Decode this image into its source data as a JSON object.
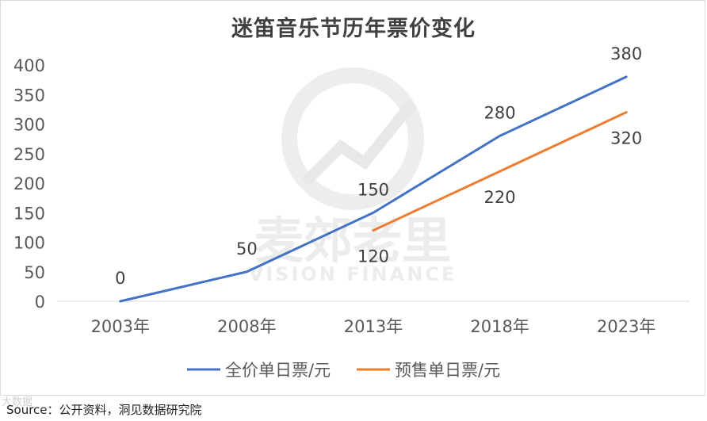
{
  "chart_data": {
    "type": "line",
    "title": "迷笛音乐节历年票价变化",
    "categories": [
      "2003年",
      "2008年",
      "2013年",
      "2018年",
      "2023年"
    ],
    "series": [
      {
        "name": "全价单日票/元",
        "color": "#4472c4",
        "values": [
          0,
          50,
          150,
          280,
          380
        ]
      },
      {
        "name": "预售单日票/元",
        "color": "#ed7d31",
        "values": [
          null,
          null,
          120,
          220,
          320
        ]
      }
    ],
    "ylim": [
      0,
      400
    ],
    "yticks": [
      0,
      50,
      100,
      150,
      200,
      250,
      300,
      350,
      400
    ],
    "xlabel": "",
    "ylabel": "",
    "grid": false,
    "legend": "bottom"
  },
  "watermark": {
    "text_cn": "麦郊老里",
    "text_en": "VISION FINANCE"
  },
  "footer": {
    "source": "Source：公开资料，洞见数据研究院",
    "corner_mark": "大数据"
  }
}
